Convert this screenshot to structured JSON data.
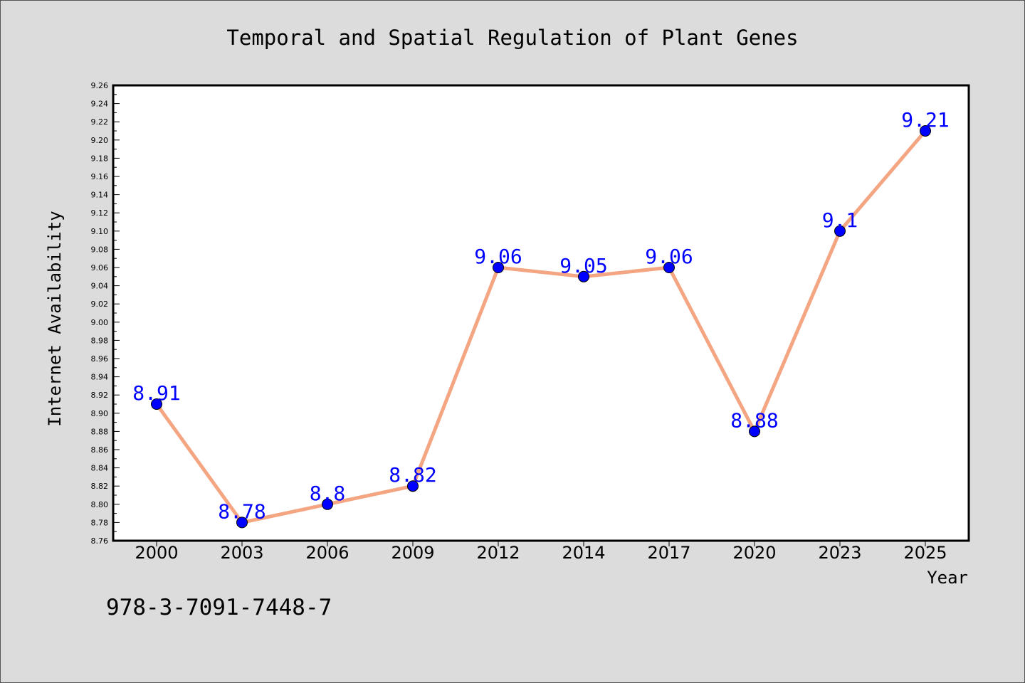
{
  "chart_data": {
    "type": "line",
    "title": "Temporal and Spatial Regulation of Plant Genes",
    "xlabel": "Year",
    "ylabel": "Internet Availability",
    "categories": [
      "2000",
      "2003",
      "2006",
      "2009",
      "2012",
      "2014",
      "2017",
      "2020",
      "2023",
      "2025"
    ],
    "series": [
      {
        "values": [
          8.91,
          8.78,
          8.8,
          8.82,
          9.06,
          9.05,
          9.06,
          8.88,
          9.1,
          9.21
        ],
        "labels": [
          "8.91",
          "8.78",
          "8.8",
          "8.82",
          "9.06",
          "9.05",
          "9.06",
          "8.88",
          "9.1",
          "9.21"
        ]
      }
    ],
    "ylim": [
      8.76,
      9.26
    ],
    "yticks": [
      "8.76",
      "8.78",
      "8.80",
      "8.82",
      "8.84",
      "8.86",
      "8.88",
      "8.90",
      "8.92",
      "8.94",
      "8.96",
      "8.98",
      "9.00",
      "9.02",
      "9.04",
      "9.06",
      "9.08",
      "9.10",
      "9.12",
      "9.14",
      "9.16",
      "9.18",
      "9.20",
      "9.22",
      "9.24",
      "9.26"
    ],
    "grid": false,
    "colors": {
      "line": "#f4a582",
      "marker": "#0000ff",
      "label": "#0000ff",
      "background": "#dcdcdc",
      "plot_background": "#ffffff"
    }
  },
  "footer": {
    "isbn": "978-3-7091-7448-7"
  }
}
